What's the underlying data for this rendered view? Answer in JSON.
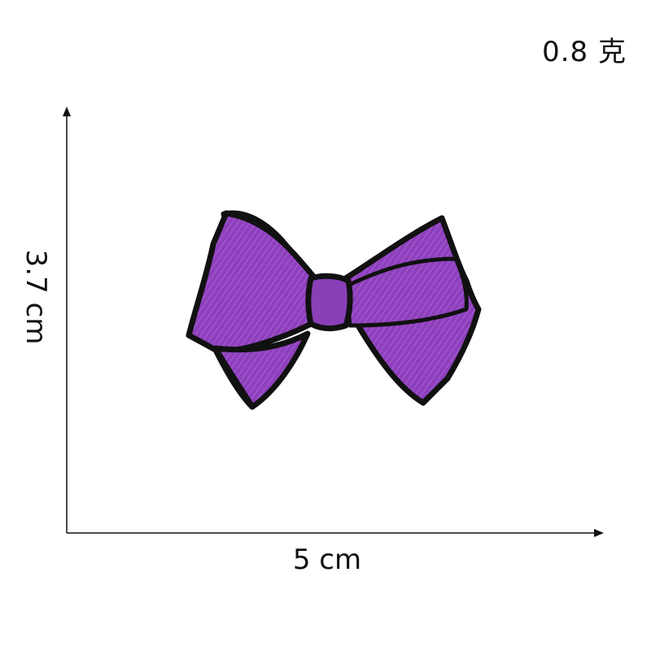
{
  "weight_label": "0.8 克",
  "dimensions": {
    "width_label": "5 cm",
    "height_label": "3.7 cm"
  },
  "product": {
    "icon": "bow-icon",
    "colors": {
      "fill": "#8a3fb8",
      "fill_light": "#a45bd0",
      "shadow": "#4b2a8c",
      "outline": "#111111"
    }
  }
}
